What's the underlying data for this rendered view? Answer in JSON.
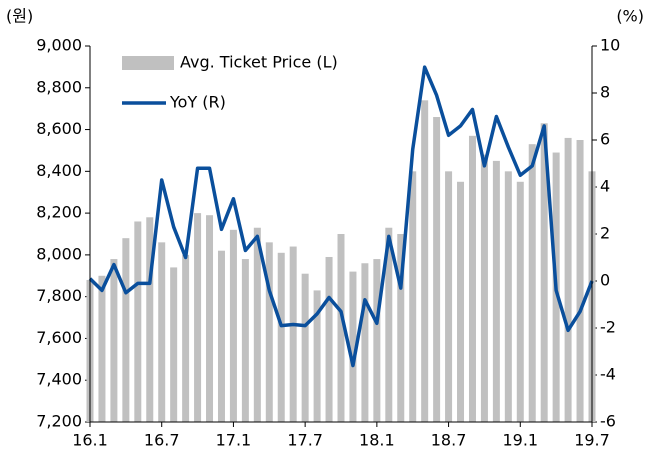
{
  "chart_data": {
    "type": "bar_line",
    "y_label": "(원)",
    "y2_label": "(%)",
    "categories": [
      "16.1",
      null,
      null,
      null,
      null,
      null,
      "16.7",
      null,
      null,
      null,
      null,
      null,
      "17.1",
      null,
      null,
      null,
      null,
      null,
      "17.7",
      null,
      null,
      null,
      null,
      null,
      "18.1",
      null,
      null,
      null,
      null,
      null,
      "18.7",
      null,
      null,
      null,
      null,
      null,
      "19.1",
      null,
      null,
      null,
      null,
      null,
      "19.7"
    ],
    "series": [
      {
        "name": "Avg. Ticket Price (L)",
        "color": "#c0c0c0",
        "kind": "bar",
        "values": [
          7880,
          7900,
          7980,
          8080,
          8160,
          8180,
          8060,
          7940,
          8000,
          8200,
          8190,
          8020,
          8120,
          7980,
          8130,
          8060,
          8010,
          8040,
          7910,
          7830,
          7990,
          8100,
          7920,
          7960,
          7980,
          8130,
          8100,
          8400,
          8740,
          8660,
          8400,
          8350,
          8570,
          8480,
          8450,
          8400,
          8350,
          8530,
          8630,
          8490,
          8560,
          8550,
          8400
        ]
      },
      {
        "name": "YoY (R)",
        "color": "#0a4f9c",
        "kind": "line",
        "axis": "y2",
        "values": [
          0.1,
          -0.4,
          0.7,
          -0.5,
          -0.1,
          -0.1,
          4.3,
          2.3,
          1.0,
          4.8,
          4.8,
          2.2,
          3.5,
          1.3,
          1.9,
          -0.4,
          -1.9,
          -1.85,
          -1.9,
          -1.4,
          -0.7,
          -1.3,
          -3.6,
          -0.8,
          -1.8,
          1.9,
          -0.3,
          5.6,
          9.1,
          7.9,
          6.2,
          6.6,
          7.3,
          4.9,
          7.0,
          5.7,
          4.5,
          4.9,
          6.6,
          -0.4,
          -2.1,
          -1.3,
          0.0
        ]
      }
    ],
    "ylim": [
      7200,
      9000
    ],
    "yticks": [
      {
        "value": 7200,
        "label": "7,200"
      },
      {
        "value": 7400,
        "label": "7,400"
      },
      {
        "value": 7600,
        "label": "7,600"
      },
      {
        "value": 7800,
        "label": "7,800"
      },
      {
        "value": 8000,
        "label": "8,000"
      },
      {
        "value": 8200,
        "label": "8,200"
      },
      {
        "value": 8400,
        "label": "8,400"
      },
      {
        "value": 8600,
        "label": "8,600"
      },
      {
        "value": 8800,
        "label": "8,800"
      },
      {
        "value": 9000,
        "label": "9,000"
      }
    ],
    "y2lim": [
      -6,
      10
    ],
    "y2ticks": [
      -6,
      -4,
      -2,
      0,
      2,
      4,
      6,
      8,
      10
    ],
    "legend": "upper left"
  }
}
